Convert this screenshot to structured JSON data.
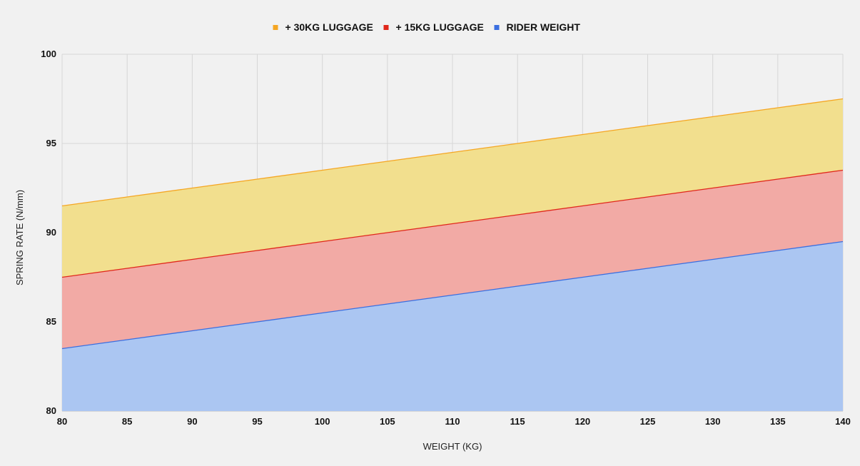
{
  "chart_data": {
    "type": "area",
    "stacked": false,
    "x": [
      80,
      85,
      90,
      95,
      100,
      105,
      110,
      115,
      120,
      125,
      130,
      135,
      140
    ],
    "series": [
      {
        "name": "+ 30KG LUGGAGE",
        "color": "#f5a623",
        "fill": "#f2df8e",
        "values": [
          91.5,
          92,
          92.5,
          93,
          93.5,
          94,
          94.5,
          95,
          95.5,
          96,
          96.5,
          97,
          97.5
        ]
      },
      {
        "name": "+ 15KG LUGGAGE",
        "color": "#e0281b",
        "fill": "#f2aaa5",
        "values": [
          87.5,
          88,
          88.5,
          89,
          89.5,
          90,
          90.5,
          91,
          91.5,
          92,
          92.5,
          93,
          93.5
        ]
      },
      {
        "name": "RIDER WEIGHT",
        "color": "#3b6fe0",
        "fill": "#abc6f2",
        "values": [
          83.5,
          84,
          84.5,
          85,
          85.5,
          86,
          86.5,
          87,
          87.5,
          88,
          88.5,
          89,
          89.5
        ]
      }
    ],
    "xlabel": "WEIGHT (KG)",
    "ylabel": "SPRING RATE (N/mm)",
    "xlim": [
      80,
      140
    ],
    "ylim": [
      80,
      100
    ],
    "x_ticks": [
      80,
      85,
      90,
      95,
      100,
      105,
      110,
      115,
      120,
      125,
      130,
      135,
      140
    ],
    "y_ticks": [
      80,
      85,
      90,
      95,
      100
    ],
    "grid": true,
    "legend_position": "top-center"
  }
}
